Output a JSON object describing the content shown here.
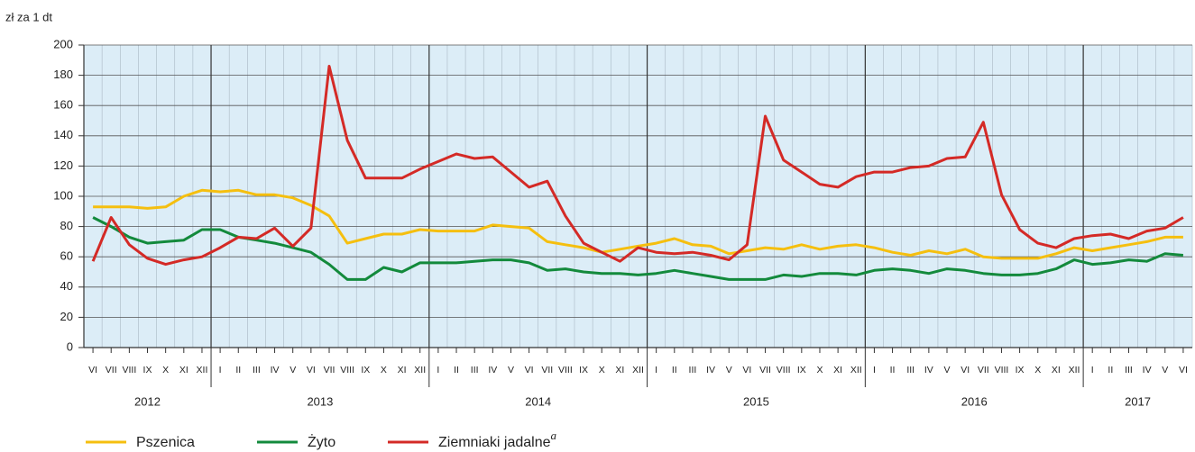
{
  "chart_data": {
    "type": "line",
    "y_label": "zł za 1 dt",
    "categories": [
      "VI",
      "VII",
      "VIII",
      "IX",
      "X",
      "XI",
      "XII",
      "I",
      "II",
      "III",
      "IV",
      "V",
      "VI",
      "VII",
      "VIII",
      "IX",
      "X",
      "XI",
      "XII",
      "I",
      "II",
      "III",
      "IV",
      "V",
      "VI",
      "VII",
      "VIII",
      "IX",
      "X",
      "XI",
      "XII",
      "I",
      "II",
      "III",
      "IV",
      "V",
      "VI",
      "VII",
      "VIII",
      "IX",
      "X",
      "XI",
      "XII",
      "I",
      "II",
      "III",
      "IV",
      "V",
      "VI",
      "VII",
      "VIII",
      "IX",
      "X",
      "XI",
      "XII",
      "I",
      "II",
      "III",
      "IV",
      "V",
      "VI"
    ],
    "year_groups": [
      {
        "label": "2012",
        "months": 7
      },
      {
        "label": "2013",
        "months": 12
      },
      {
        "label": "2014",
        "months": 12
      },
      {
        "label": "2015",
        "months": 12
      },
      {
        "label": "2016",
        "months": 12
      },
      {
        "label": "2017",
        "months": 6
      }
    ],
    "series": [
      {
        "name": "Pszenica",
        "color": "#f5bf0f",
        "values": [
          93,
          93,
          93,
          92,
          93,
          100,
          104,
          103,
          104,
          101,
          101,
          99,
          94,
          87,
          69,
          72,
          75,
          75,
          78,
          77,
          77,
          77,
          81,
          80,
          79,
          70,
          68,
          66,
          63,
          65,
          67,
          69,
          72,
          68,
          67,
          62,
          64,
          66,
          65,
          68,
          65,
          67,
          68,
          66,
          63,
          61,
          64,
          62,
          65,
          60,
          59,
          59,
          59,
          62,
          66,
          64,
          66,
          68,
          70,
          73,
          73
        ]
      },
      {
        "name": "Żyto",
        "color": "#138a3c",
        "values": [
          86,
          80,
          73,
          69,
          70,
          71,
          78,
          78,
          73,
          71,
          69,
          66,
          63,
          55,
          45,
          45,
          53,
          50,
          56,
          56,
          56,
          57,
          58,
          58,
          56,
          51,
          52,
          50,
          49,
          49,
          48,
          49,
          51,
          49,
          47,
          45,
          45,
          45,
          48,
          47,
          49,
          49,
          48,
          51,
          52,
          51,
          49,
          52,
          51,
          49,
          48,
          48,
          49,
          52,
          58,
          55,
          56,
          58,
          57,
          62,
          61
        ]
      },
      {
        "name": "Ziemniaki jadalne",
        "note": "a",
        "color": "#d42a26",
        "values": [
          57,
          86,
          68,
          59,
          55,
          58,
          60,
          66,
          73,
          72,
          79,
          67,
          79,
          186,
          137,
          112,
          112,
          112,
          118,
          123,
          128,
          125,
          126,
          116,
          106,
          110,
          87,
          69,
          63,
          57,
          66,
          63,
          62,
          63,
          61,
          58,
          68,
          153,
          124,
          116,
          108,
          106,
          113,
          116,
          116,
          119,
          120,
          125,
          126,
          149,
          101,
          78,
          69,
          66,
          72,
          74,
          75,
          72,
          77,
          79,
          86
        ]
      }
    ],
    "ylim": [
      0,
      200
    ],
    "yticks": [
      0,
      20,
      40,
      60,
      80,
      100,
      120,
      140,
      160,
      180,
      200
    ],
    "grid": true
  }
}
